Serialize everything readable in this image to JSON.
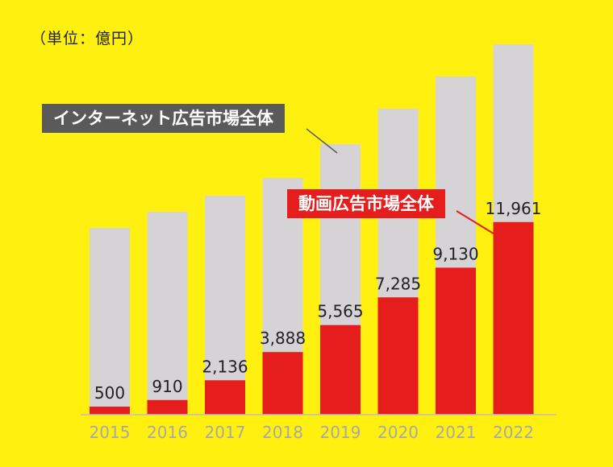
{
  "unit_label": "（単位：億円）",
  "colors": {
    "background": "#FFF010",
    "total_bar": "#D6D3D6",
    "video_bar": "#E51D1D",
    "total_label_bg": "#5A5A5A",
    "video_label_bg": "#E51D1D",
    "axis_label": "#A8A8A8",
    "value_label": "#222222"
  },
  "chart_data": {
    "type": "bar",
    "categories": [
      "2015",
      "2016",
      "2017",
      "2018",
      "2019",
      "2020",
      "2021",
      "2022"
    ],
    "series": [
      {
        "name": "インターネット広告市場全体",
        "values": [
          11600,
          12600,
          13600,
          14700,
          16800,
          19000,
          21000,
          23000
        ]
      },
      {
        "name": "動画広告市場全体",
        "values": [
          500,
          910,
          2136,
          3888,
          5565,
          7285,
          9130,
          11961
        ],
        "labels": [
          "500",
          "910",
          "2,136",
          "3,888",
          "5,565",
          "7,285",
          "9,130",
          "11,961"
        ]
      }
    ],
    "ylim": [
      0,
      23000
    ],
    "grid": false,
    "legend": "callout labels"
  }
}
